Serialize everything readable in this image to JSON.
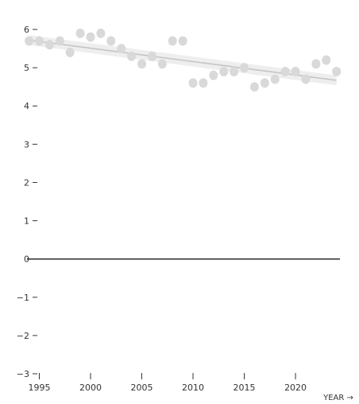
{
  "chart_data": {
    "type": "scatter",
    "title": "",
    "xlabel": "YEAR →",
    "ylabel": "",
    "xlim": [
      1993.8,
      2024.8
    ],
    "ylim": [
      -3,
      6.25
    ],
    "x_ticks": [
      1995,
      2000,
      2005,
      2010,
      2015,
      2020
    ],
    "y_ticks": [
      {
        "value": 6,
        "label": "6"
      },
      {
        "value": 5,
        "label": "5"
      },
      {
        "value": 4,
        "label": "4"
      },
      {
        "value": 3,
        "label": "3"
      },
      {
        "value": 2,
        "label": "2"
      },
      {
        "value": 1,
        "label": "1"
      },
      {
        "value": 0,
        "label": "0"
      },
      {
        "value": -1,
        "label": "−1"
      },
      {
        "value": -2,
        "label": "−2"
      },
      {
        "value": -3,
        "label": "−3"
      }
    ],
    "reference_line_y": 0,
    "grid": false,
    "series": [
      {
        "x": [
          1994,
          1995,
          1996,
          1997,
          1998,
          1999,
          2000,
          2001,
          2002,
          2003,
          2004,
          2005,
          2006,
          2007,
          2008,
          2009,
          2010,
          2011,
          2012,
          2013,
          2014,
          2015,
          2016,
          2017,
          2018,
          2019,
          2020,
          2021,
          2022,
          2023,
          2024
        ],
        "y": [
          5.7,
          5.7,
          5.6,
          5.7,
          5.4,
          5.9,
          5.8,
          5.9,
          5.7,
          5.5,
          5.3,
          5.1,
          5.3,
          5.1,
          5.7,
          5.7,
          4.6,
          4.6,
          4.8,
          4.9,
          4.9,
          5.0,
          4.5,
          4.6,
          4.7,
          4.9,
          4.9,
          4.7,
          5.1,
          5.2,
          4.9
        ]
      }
    ],
    "trend": {
      "x": [
        1994,
        2024
      ],
      "y": [
        5.72,
        4.67
      ]
    },
    "colors": {
      "points": "#d9d9d9",
      "trend_line": "#c4c4c4",
      "trend_band": "#eeeeee",
      "zero_line": "#333333",
      "text": "#333333"
    }
  }
}
